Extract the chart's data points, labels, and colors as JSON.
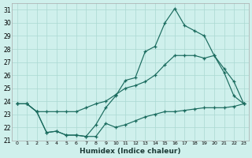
{
  "xlabel": "Humidex (Indice chaleur)",
  "xlim": [
    -0.5,
    23.5
  ],
  "ylim": [
    21,
    31.5
  ],
  "yticks": [
    21,
    22,
    23,
    24,
    25,
    26,
    27,
    28,
    29,
    30,
    31
  ],
  "xticks": [
    0,
    1,
    2,
    3,
    4,
    5,
    6,
    7,
    8,
    9,
    10,
    11,
    12,
    13,
    14,
    15,
    16,
    17,
    18,
    19,
    20,
    21,
    22,
    23
  ],
  "bg_color": "#cff0ec",
  "grid_color": "#aad8d2",
  "line_color": "#1a6b5e",
  "line_top_x": [
    0,
    1,
    2,
    3,
    4,
    5,
    6,
    7,
    8,
    9,
    10,
    11,
    12,
    13,
    14,
    15,
    16,
    17,
    18,
    19,
    20,
    21,
    22,
    23
  ],
  "line_top_y": [
    23.8,
    23.8,
    23.2,
    21.6,
    21.7,
    21.4,
    21.4,
    21.3,
    22.2,
    23.5,
    24.4,
    25.6,
    25.8,
    27.8,
    28.2,
    30.0,
    31.1,
    29.8,
    29.4,
    29.0,
    27.5,
    26.2,
    24.4,
    23.8
  ],
  "line_mid_x": [
    0,
    1,
    2,
    3,
    4,
    5,
    6,
    7,
    8,
    9,
    10,
    11,
    12,
    13,
    14,
    15,
    16,
    17,
    18,
    19,
    20,
    21,
    22,
    23
  ],
  "line_mid_y": [
    23.8,
    23.8,
    23.2,
    23.2,
    23.2,
    23.2,
    23.2,
    23.5,
    23.8,
    24.0,
    24.5,
    25.0,
    25.2,
    25.5,
    26.0,
    26.8,
    27.5,
    27.5,
    27.5,
    27.3,
    27.5,
    26.5,
    25.5,
    23.8
  ],
  "line_bot_x": [
    0,
    1,
    2,
    3,
    4,
    5,
    6,
    7,
    8,
    9,
    10,
    11,
    12,
    13,
    14,
    15,
    16,
    17,
    18,
    19,
    20,
    21,
    22,
    23
  ],
  "line_bot_y": [
    23.8,
    23.8,
    23.2,
    21.6,
    21.7,
    21.4,
    21.4,
    21.3,
    21.3,
    22.3,
    22.0,
    22.2,
    22.5,
    22.8,
    23.0,
    23.2,
    23.2,
    23.3,
    23.4,
    23.5,
    23.5,
    23.5,
    23.6,
    23.8
  ]
}
